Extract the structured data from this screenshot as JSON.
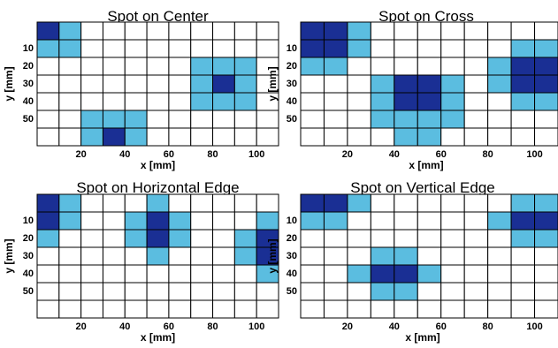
{
  "colors": {
    "dark": "#1a2f94",
    "light": "#5bbde0",
    "empty": "#ffffff",
    "grid": "#000000"
  },
  "chart_data": [
    {
      "type": "heatmap",
      "title": "Spot on Center",
      "xlabel": "x [mm]",
      "ylabel": "y [mm]",
      "xticks": [
        "20",
        "40",
        "60",
        "80",
        "100"
      ],
      "yticks": [
        "10",
        "20",
        "30",
        "40",
        "50"
      ],
      "grid": [
        [
          2,
          1,
          0,
          0,
          0,
          0,
          0,
          0,
          0,
          0,
          0
        ],
        [
          1,
          1,
          0,
          0,
          0,
          0,
          0,
          0,
          0,
          0,
          0
        ],
        [
          0,
          0,
          0,
          0,
          0,
          0,
          0,
          1,
          1,
          1,
          0
        ],
        [
          0,
          0,
          0,
          0,
          0,
          0,
          0,
          1,
          2,
          1,
          0
        ],
        [
          0,
          0,
          0,
          0,
          0,
          0,
          0,
          1,
          1,
          1,
          0
        ],
        [
          0,
          0,
          1,
          1,
          1,
          0,
          0,
          0,
          0,
          0,
          0
        ],
        [
          0,
          0,
          1,
          2,
          1,
          0,
          0,
          0,
          0,
          0,
          0
        ]
      ]
    },
    {
      "type": "heatmap",
      "title": "Spot on Cross",
      "xlabel": "x [mm]",
      "ylabel": "y [mm]",
      "xticks": [
        "20",
        "40",
        "60",
        "80",
        "100"
      ],
      "yticks": [
        "10",
        "20",
        "30",
        "40",
        "50"
      ],
      "grid": [
        [
          2,
          2,
          1,
          0,
          0,
          0,
          0,
          0,
          0,
          0,
          0
        ],
        [
          2,
          2,
          1,
          0,
          0,
          0,
          0,
          0,
          0,
          1,
          1
        ],
        [
          1,
          1,
          0,
          0,
          0,
          0,
          0,
          0,
          1,
          2,
          2
        ],
        [
          0,
          0,
          0,
          1,
          2,
          2,
          1,
          0,
          1,
          2,
          2
        ],
        [
          0,
          0,
          0,
          1,
          2,
          2,
          1,
          0,
          0,
          1,
          1
        ],
        [
          0,
          0,
          0,
          1,
          1,
          1,
          1,
          0,
          0,
          0,
          0
        ],
        [
          0,
          0,
          0,
          0,
          1,
          1,
          0,
          0,
          0,
          0,
          0
        ]
      ]
    },
    {
      "type": "heatmap",
      "title": "Spot on Horizontal Edge",
      "xlabel": "x [mm]",
      "ylabel": "y [mm]",
      "xticks": [
        "20",
        "40",
        "60",
        "80",
        "100"
      ],
      "yticks": [
        "10",
        "20",
        "30",
        "40",
        "50"
      ],
      "grid": [
        [
          2,
          1,
          0,
          0,
          0,
          1,
          0,
          0,
          0,
          0,
          0
        ],
        [
          2,
          1,
          0,
          0,
          1,
          2,
          1,
          0,
          0,
          0,
          1
        ],
        [
          1,
          0,
          0,
          0,
          1,
          2,
          1,
          0,
          0,
          1,
          2
        ],
        [
          0,
          0,
          0,
          0,
          0,
          1,
          0,
          0,
          0,
          1,
          2
        ],
        [
          0,
          0,
          0,
          0,
          0,
          0,
          0,
          0,
          0,
          0,
          1
        ],
        [
          0,
          0,
          0,
          0,
          0,
          0,
          0,
          0,
          0,
          0,
          0
        ],
        [
          0,
          0,
          0,
          0,
          0,
          0,
          0,
          0,
          0,
          0,
          0
        ]
      ]
    },
    {
      "type": "heatmap",
      "title": "Spot on Vertical Edge",
      "xlabel": "x [mm]",
      "ylabel": "y [mm]",
      "xticks": [
        "20",
        "40",
        "60",
        "80",
        "100"
      ],
      "yticks": [
        "10",
        "20",
        "30",
        "40",
        "50"
      ],
      "grid": [
        [
          2,
          2,
          1,
          0,
          0,
          0,
          0,
          0,
          0,
          1,
          1
        ],
        [
          1,
          1,
          0,
          0,
          0,
          0,
          0,
          0,
          1,
          2,
          2
        ],
        [
          0,
          0,
          0,
          0,
          0,
          0,
          0,
          0,
          0,
          1,
          1
        ],
        [
          0,
          0,
          0,
          1,
          1,
          0,
          0,
          0,
          0,
          0,
          0
        ],
        [
          0,
          0,
          1,
          2,
          2,
          1,
          0,
          0,
          0,
          0,
          0
        ],
        [
          0,
          0,
          0,
          1,
          1,
          0,
          0,
          0,
          0,
          0,
          0
        ],
        [
          0,
          0,
          0,
          0,
          0,
          0,
          0,
          0,
          0,
          0,
          0
        ]
      ]
    }
  ]
}
